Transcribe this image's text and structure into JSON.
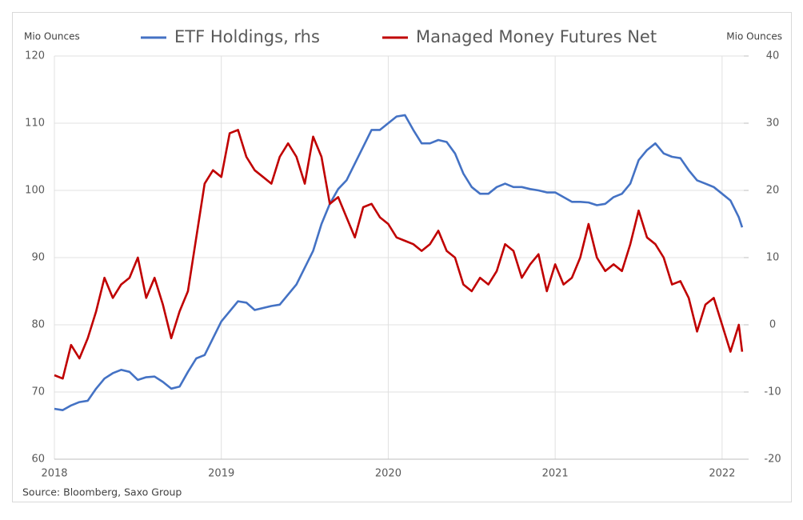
{
  "chart_data": {
    "type": "line",
    "y_label": "Mio Ounces",
    "y2_label": "Mio Ounces",
    "source": "Source: Bloomberg, Saxo Group",
    "x": [
      2018.0,
      2018.05,
      2018.1,
      2018.15,
      2018.2,
      2018.25,
      2018.3,
      2018.35,
      2018.4,
      2018.45,
      2018.5,
      2018.55,
      2018.6,
      2018.65,
      2018.7,
      2018.75,
      2018.8,
      2018.85,
      2018.9,
      2018.95,
      2019.0,
      2019.05,
      2019.1,
      2019.15,
      2019.2,
      2019.25,
      2019.3,
      2019.35,
      2019.4,
      2019.45,
      2019.5,
      2019.55,
      2019.6,
      2019.65,
      2019.7,
      2019.75,
      2019.8,
      2019.85,
      2019.9,
      2019.95,
      2020.0,
      2020.05,
      2020.1,
      2020.15,
      2020.2,
      2020.25,
      2020.3,
      2020.35,
      2020.4,
      2020.45,
      2020.5,
      2020.55,
      2020.6,
      2020.65,
      2020.7,
      2020.75,
      2020.8,
      2020.85,
      2020.9,
      2020.95,
      2021.0,
      2021.05,
      2021.1,
      2021.15,
      2021.2,
      2021.25,
      2021.3,
      2021.35,
      2021.4,
      2021.45,
      2021.5,
      2021.55,
      2021.6,
      2021.65,
      2021.7,
      2021.75,
      2021.8,
      2021.85,
      2021.9,
      2021.95,
      2022.0,
      2022.05,
      2022.1,
      2022.12
    ],
    "series": [
      {
        "name": "ETF Holdings, rhs",
        "color": "#4472c4",
        "values": [
          67.5,
          67.3,
          68.0,
          68.5,
          68.7,
          70.5,
          72,
          72.8,
          73.3,
          73,
          71.8,
          72.2,
          72.3,
          71.5,
          70.5,
          70.8,
          73,
          75,
          75.5,
          78,
          80.5,
          82,
          83.5,
          83.3,
          82.2,
          82.5,
          82.8,
          83,
          84.5,
          86,
          88.5,
          91,
          95,
          98,
          100.2,
          101.5,
          104,
          106.5,
          109,
          109,
          110,
          111,
          111.2,
          109,
          107,
          107,
          107.5,
          107.2,
          105.5,
          102.5,
          100.5,
          99.5,
          99.5,
          100.5,
          101,
          100.5,
          100.5,
          100.2,
          100,
          99.7,
          99.7,
          99,
          98.3,
          98.3,
          98.2,
          97.8,
          98,
          99,
          99.5,
          101,
          104.5,
          106,
          107,
          105.5,
          105,
          104.8,
          103,
          101.5,
          101,
          100.5,
          99.5,
          98.5,
          96,
          94.5
        ]
      },
      {
        "name": "Managed Money Futures Net",
        "color": "#c00000",
        "axis": "y2",
        "values": [
          -7.5,
          -8,
          -3,
          -5,
          -2,
          2,
          7,
          4,
          6,
          7,
          10,
          4,
          7,
          3,
          -2,
          2,
          5,
          13,
          21,
          23,
          22,
          28.5,
          29,
          25,
          23,
          22,
          21,
          25,
          27,
          25,
          21,
          28,
          25,
          18,
          19,
          16,
          13,
          17.5,
          18,
          16,
          15,
          13,
          12.5,
          12,
          11,
          12,
          14,
          11,
          10,
          6,
          5,
          7,
          6,
          8,
          12,
          11,
          7,
          9,
          10.5,
          5,
          9,
          6,
          7,
          10,
          15,
          10,
          8,
          9,
          8,
          12,
          17,
          13,
          12,
          10,
          6,
          6.5,
          4,
          -1,
          3,
          4,
          0,
          -4,
          0,
          -4
        ]
      }
    ],
    "xlim": [
      2018,
      2022.13
    ],
    "xticks": [
      2018,
      2019,
      2020,
      2021,
      2022
    ],
    "ylim": [
      60,
      120
    ],
    "yticks": [
      60,
      70,
      80,
      90,
      100,
      110,
      120
    ],
    "y2lim": [
      -20,
      40
    ],
    "y2ticks": [
      -20,
      -10,
      0,
      10,
      20,
      30,
      40
    ],
    "grid": true
  }
}
